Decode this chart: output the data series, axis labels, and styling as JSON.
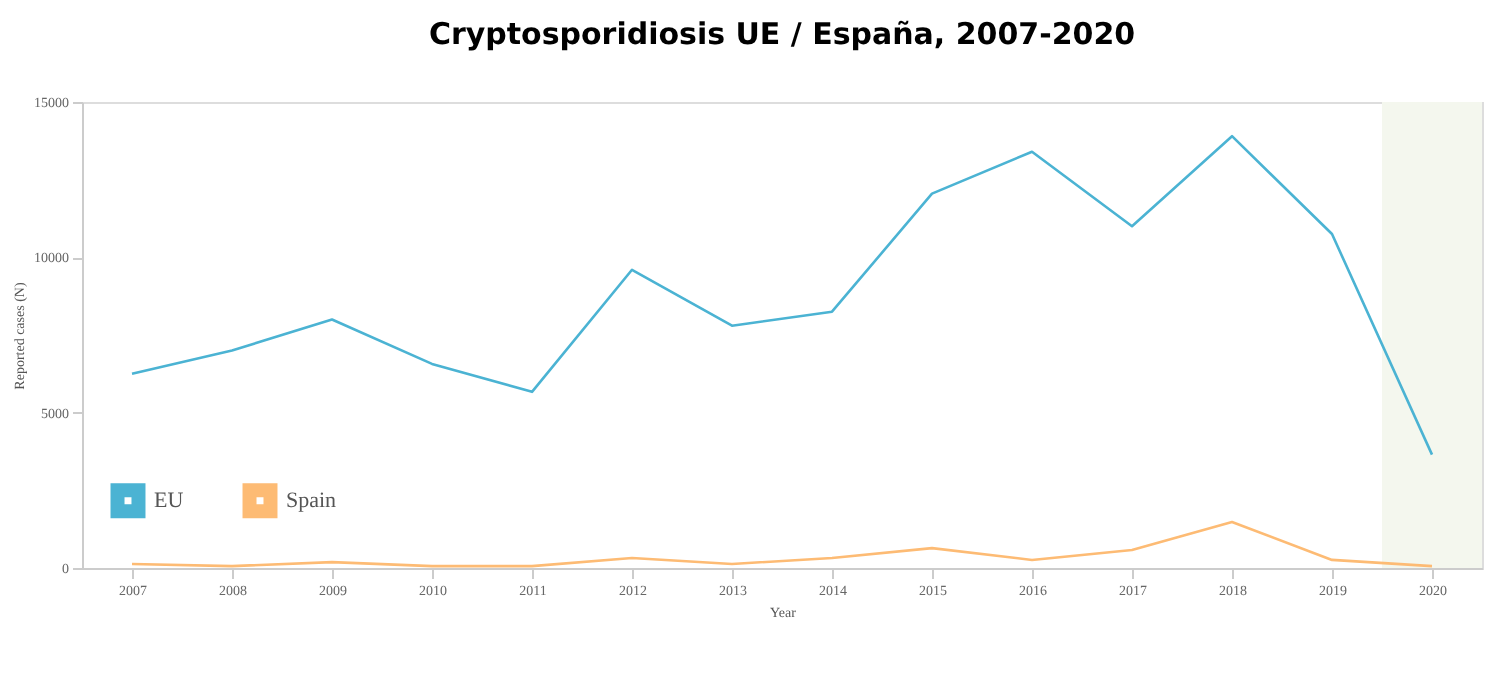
{
  "chart_data": {
    "type": "line",
    "title": "Cryptosporidiosis UE / España, 2007-2020",
    "xlabel": "Year",
    "ylabel": "Reported cases (N)",
    "x": [
      2007,
      2008,
      2009,
      2010,
      2011,
      2012,
      2013,
      2014,
      2015,
      2016,
      2017,
      2018,
      2019,
      2020
    ],
    "series": [
      {
        "name": "EU",
        "color": "#4bb3d3",
        "values": [
          6250,
          7000,
          8000,
          6570,
          5670,
          9600,
          7800,
          8250,
          12050,
          13400,
          11000,
          13900,
          10750,
          3650
        ]
      },
      {
        "name": "Spain",
        "color": "#fdbb74",
        "values": [
          130,
          60,
          190,
          60,
          60,
          320,
          130,
          320,
          640,
          260,
          580,
          1480,
          260,
          60
        ]
      }
    ],
    "xlim": [
      2006.5,
      2020.5
    ],
    "xticks": [
      2007,
      2008,
      2009,
      2010,
      2011,
      2012,
      2013,
      2014,
      2015,
      2016,
      2017,
      2018,
      2019,
      2020
    ],
    "ylim": [
      0,
      15000
    ],
    "yticks": [
      0,
      5000,
      10000,
      15000
    ],
    "bands": [
      {
        "axis": "x",
        "from": 2019.5,
        "to": 2020.5,
        "color": "#f4f7ee"
      }
    ],
    "grid": false,
    "legend": "bottom left",
    "marker": "none",
    "line_style": "solid"
  }
}
